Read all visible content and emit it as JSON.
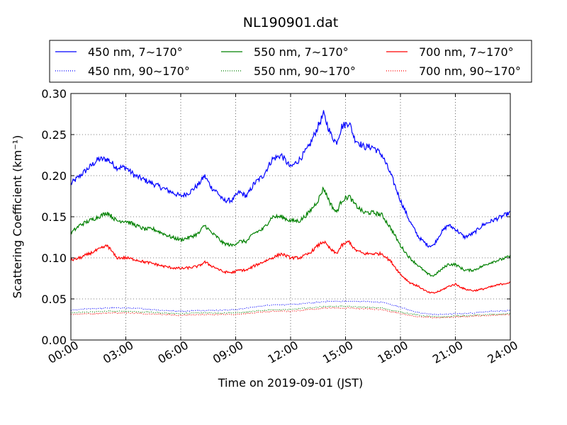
{
  "chart_data": {
    "type": "line",
    "title": "NL190901.dat",
    "xlabel": "Time on 2019-09-01 (JST)",
    "ylabel": "Scattering Coefficient (km⁻¹)",
    "xlim": [
      0,
      24
    ],
    "ylim": [
      0.0,
      0.3
    ],
    "x_tick_labels": [
      "00:00",
      "03:00",
      "06:00",
      "09:00",
      "12:00",
      "15:00",
      "18:00",
      "21:00",
      "24:00"
    ],
    "y_tick_labels": [
      "0.00",
      "0.05",
      "0.10",
      "0.15",
      "0.20",
      "0.25",
      "0.30"
    ],
    "x_ticks": [
      0,
      3,
      6,
      9,
      12,
      15,
      18,
      21,
      24
    ],
    "y_ticks": [
      0.0,
      0.05,
      0.1,
      0.15,
      0.2,
      0.25,
      0.3
    ],
    "grid": true,
    "legend_position": "top, above plot, 3 columns",
    "x_unit": "hours",
    "series": [
      {
        "name": "450 nm, 7∼170°",
        "color": "#0000ff",
        "style": "solid",
        "x": [
          0,
          0.5,
          1,
          1.5,
          2,
          2.5,
          3,
          3.5,
          4,
          4.5,
          5,
          5.5,
          6,
          6.5,
          7,
          7.3,
          7.7,
          8,
          8.3,
          8.8,
          9.2,
          9.6,
          10,
          10.5,
          11,
          11.5,
          12,
          12.5,
          13,
          13.5,
          13.8,
          14.2,
          14.5,
          14.8,
          15.2,
          15.5,
          16,
          16.5,
          17,
          17.5,
          18,
          18.5,
          19,
          19.5,
          19.8,
          20.2,
          20.6,
          21,
          21.5,
          22,
          22.5,
          23,
          23.5,
          24
        ],
        "y": [
          0.19,
          0.2,
          0.21,
          0.22,
          0.22,
          0.21,
          0.21,
          0.2,
          0.195,
          0.19,
          0.185,
          0.18,
          0.175,
          0.18,
          0.19,
          0.2,
          0.185,
          0.18,
          0.17,
          0.17,
          0.18,
          0.175,
          0.19,
          0.2,
          0.22,
          0.225,
          0.21,
          0.22,
          0.235,
          0.26,
          0.275,
          0.25,
          0.24,
          0.26,
          0.265,
          0.245,
          0.235,
          0.235,
          0.225,
          0.2,
          0.17,
          0.145,
          0.125,
          0.115,
          0.115,
          0.13,
          0.14,
          0.135,
          0.125,
          0.13,
          0.14,
          0.145,
          0.15,
          0.155
        ]
      },
      {
        "name": "450 nm, 90∼170°",
        "color": "#0000ff",
        "style": "dotted",
        "x": [
          0,
          1,
          2,
          3,
          4,
          5,
          6,
          7,
          8,
          9,
          10,
          11,
          12,
          13,
          14,
          15,
          16,
          17,
          18,
          19,
          20,
          21,
          22,
          23,
          24
        ],
        "y": [
          0.036,
          0.038,
          0.039,
          0.039,
          0.038,
          0.036,
          0.035,
          0.036,
          0.036,
          0.037,
          0.04,
          0.043,
          0.043,
          0.045,
          0.047,
          0.047,
          0.047,
          0.046,
          0.04,
          0.033,
          0.031,
          0.032,
          0.033,
          0.035,
          0.036
        ]
      },
      {
        "name": "550 nm, 7∼170°",
        "color": "#008000",
        "style": "solid",
        "x": [
          0,
          0.5,
          1,
          1.5,
          2,
          2.5,
          3,
          3.5,
          4,
          4.5,
          5,
          5.5,
          6,
          6.5,
          7,
          7.3,
          7.7,
          8,
          8.3,
          8.8,
          9.2,
          9.6,
          10,
          10.5,
          11,
          11.5,
          12,
          12.5,
          13,
          13.5,
          13.8,
          14.2,
          14.5,
          14.8,
          15.2,
          15.5,
          16,
          16.5,
          17,
          17.5,
          18,
          18.5,
          19,
          19.5,
          19.8,
          20.2,
          20.6,
          21,
          21.5,
          22,
          22.5,
          23,
          23.5,
          24
        ],
        "y": [
          0.13,
          0.14,
          0.145,
          0.15,
          0.155,
          0.145,
          0.145,
          0.14,
          0.135,
          0.135,
          0.13,
          0.125,
          0.122,
          0.125,
          0.13,
          0.14,
          0.13,
          0.125,
          0.118,
          0.115,
          0.12,
          0.12,
          0.13,
          0.135,
          0.15,
          0.15,
          0.145,
          0.145,
          0.155,
          0.17,
          0.185,
          0.165,
          0.155,
          0.17,
          0.175,
          0.165,
          0.155,
          0.155,
          0.152,
          0.135,
          0.115,
          0.1,
          0.09,
          0.08,
          0.078,
          0.085,
          0.092,
          0.092,
          0.085,
          0.085,
          0.09,
          0.095,
          0.098,
          0.102
        ]
      },
      {
        "name": "550 nm, 90∼170°",
        "color": "#008000",
        "style": "dotted",
        "x": [
          0,
          1,
          2,
          3,
          4,
          5,
          6,
          7,
          8,
          9,
          10,
          11,
          12,
          13,
          14,
          15,
          16,
          17,
          18,
          19,
          20,
          21,
          22,
          23,
          24
        ],
        "y": [
          0.033,
          0.034,
          0.035,
          0.035,
          0.034,
          0.033,
          0.032,
          0.033,
          0.033,
          0.033,
          0.035,
          0.037,
          0.037,
          0.039,
          0.041,
          0.041,
          0.04,
          0.039,
          0.034,
          0.03,
          0.028,
          0.029,
          0.03,
          0.031,
          0.032
        ]
      },
      {
        "name": "700 nm, 7∼170°",
        "color": "#ff0000",
        "style": "solid",
        "x": [
          0,
          0.5,
          1,
          1.5,
          2,
          2.5,
          3,
          3.5,
          4,
          4.5,
          5,
          5.5,
          6,
          6.5,
          7,
          7.3,
          7.7,
          8,
          8.3,
          8.8,
          9.2,
          9.6,
          10,
          10.5,
          11,
          11.5,
          12,
          12.5,
          13,
          13.5,
          13.8,
          14.2,
          14.5,
          14.8,
          15.2,
          15.5,
          16,
          16.5,
          17,
          17.5,
          18,
          18.5,
          19,
          19.5,
          19.8,
          20.2,
          20.6,
          21,
          21.5,
          22,
          22.5,
          23,
          23.5,
          24
        ],
        "y": [
          0.097,
          0.1,
          0.105,
          0.11,
          0.115,
          0.1,
          0.1,
          0.098,
          0.095,
          0.093,
          0.09,
          0.088,
          0.087,
          0.088,
          0.09,
          0.095,
          0.09,
          0.087,
          0.083,
          0.082,
          0.085,
          0.085,
          0.09,
          0.095,
          0.1,
          0.105,
          0.1,
          0.1,
          0.105,
          0.115,
          0.12,
          0.11,
          0.105,
          0.115,
          0.12,
          0.11,
          0.105,
          0.105,
          0.105,
          0.095,
          0.08,
          0.07,
          0.065,
          0.058,
          0.057,
          0.06,
          0.065,
          0.068,
          0.062,
          0.06,
          0.062,
          0.065,
          0.068,
          0.07
        ]
      },
      {
        "name": "700 nm, 90∼170°",
        "color": "#ff0000",
        "style": "dotted",
        "x": [
          0,
          1,
          2,
          3,
          4,
          5,
          6,
          7,
          8,
          9,
          10,
          11,
          12,
          13,
          14,
          15,
          16,
          17,
          18,
          19,
          20,
          21,
          22,
          23,
          24
        ],
        "y": [
          0.031,
          0.032,
          0.033,
          0.033,
          0.032,
          0.031,
          0.03,
          0.031,
          0.031,
          0.031,
          0.033,
          0.035,
          0.035,
          0.037,
          0.039,
          0.039,
          0.038,
          0.037,
          0.032,
          0.028,
          0.027,
          0.028,
          0.029,
          0.03,
          0.031
        ]
      }
    ]
  }
}
